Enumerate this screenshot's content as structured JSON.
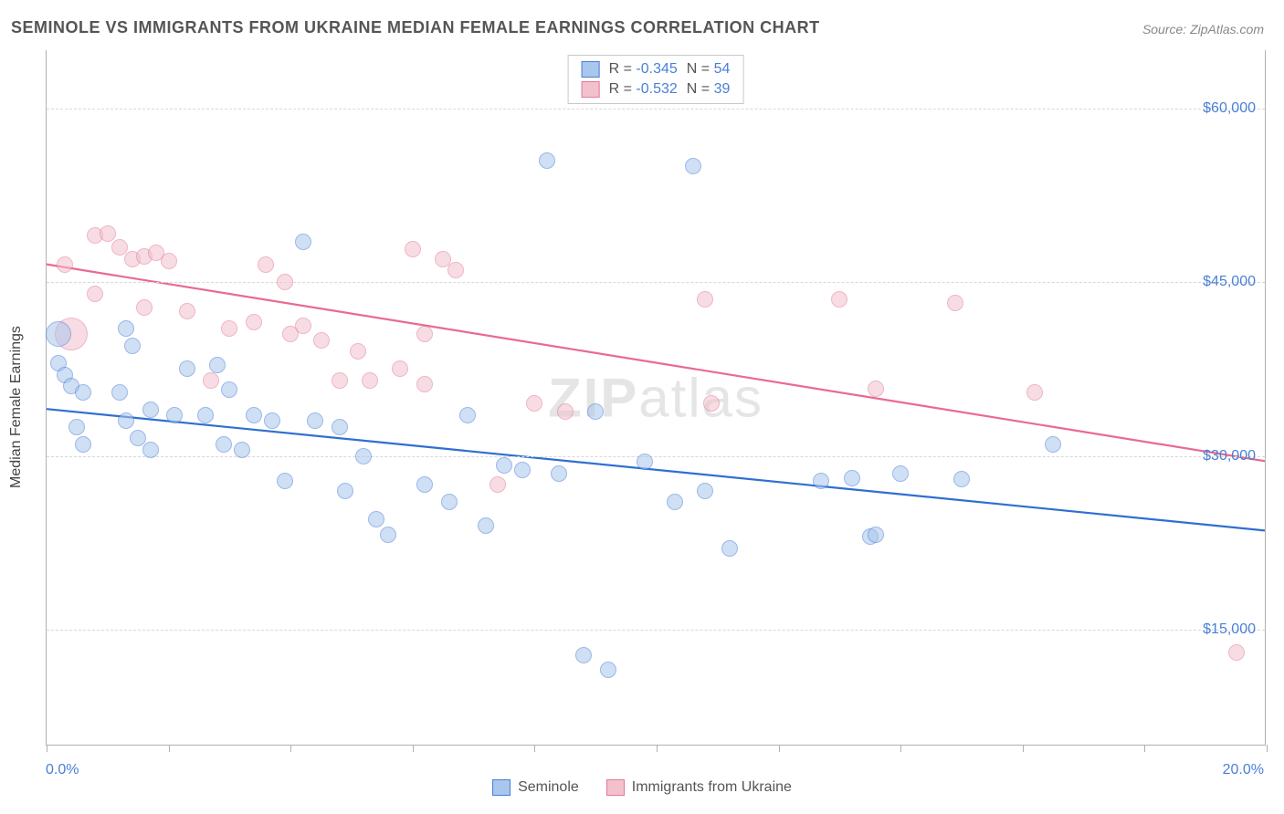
{
  "title": "SEMINOLE VS IMMIGRANTS FROM UKRAINE MEDIAN FEMALE EARNINGS CORRELATION CHART",
  "source": "Source: ZipAtlas.com",
  "ylabel": "Median Female Earnings",
  "watermark_bold": "ZIP",
  "watermark_rest": "atlas",
  "chart": {
    "type": "scatter",
    "xlim": [
      0,
      20
    ],
    "ylim": [
      5000,
      65000
    ],
    "x_start_label": "0.0%",
    "x_end_label": "20.0%",
    "x_tick_positions": [
      0,
      2,
      4,
      6,
      8,
      10,
      12,
      14,
      16,
      18,
      20
    ],
    "y_ticks": [
      {
        "v": 15000,
        "label": "$15,000"
      },
      {
        "v": 30000,
        "label": "$30,000"
      },
      {
        "v": 45000,
        "label": "$45,000"
      },
      {
        "v": 60000,
        "label": "$60,000"
      }
    ],
    "grid_color": "#d8d8d8",
    "axis_color": "#b0b0b0",
    "tick_label_color": "#4a7fd6",
    "background_color": "#ffffff",
    "marker_radius": 9,
    "marker_opacity": 0.55,
    "series": [
      {
        "name": "Seminole",
        "fill": "#a9c6ec",
        "stroke": "#4a7fd6",
        "trend_color": "#2f6fd0",
        "R": "-0.345",
        "N": "54",
        "trend": {
          "x1": 0,
          "y1": 34000,
          "x2": 20,
          "y2": 23500
        },
        "points": [
          {
            "x": 0.2,
            "y": 40500,
            "r": 14
          },
          {
            "x": 0.2,
            "y": 38000
          },
          {
            "x": 0.3,
            "y": 37000
          },
          {
            "x": 0.4,
            "y": 36000
          },
          {
            "x": 0.6,
            "y": 35500
          },
          {
            "x": 0.5,
            "y": 32500
          },
          {
            "x": 0.6,
            "y": 31000
          },
          {
            "x": 1.3,
            "y": 41000
          },
          {
            "x": 1.4,
            "y": 39500
          },
          {
            "x": 1.2,
            "y": 35500
          },
          {
            "x": 1.3,
            "y": 33000
          },
          {
            "x": 1.5,
            "y": 31500
          },
          {
            "x": 1.7,
            "y": 34000
          },
          {
            "x": 1.7,
            "y": 30500
          },
          {
            "x": 2.1,
            "y": 33500
          },
          {
            "x": 2.3,
            "y": 37500
          },
          {
            "x": 2.6,
            "y": 33500
          },
          {
            "x": 2.8,
            "y": 37800
          },
          {
            "x": 2.9,
            "y": 31000
          },
          {
            "x": 3.2,
            "y": 30500
          },
          {
            "x": 3.4,
            "y": 33500
          },
          {
            "x": 3.7,
            "y": 33000
          },
          {
            "x": 3.9,
            "y": 27800
          },
          {
            "x": 4.2,
            "y": 48500
          },
          {
            "x": 4.4,
            "y": 33000
          },
          {
            "x": 4.8,
            "y": 32500
          },
          {
            "x": 4.9,
            "y": 27000
          },
          {
            "x": 5.2,
            "y": 30000
          },
          {
            "x": 5.4,
            "y": 24500
          },
          {
            "x": 5.6,
            "y": 23200
          },
          {
            "x": 6.2,
            "y": 27500
          },
          {
            "x": 6.6,
            "y": 26000
          },
          {
            "x": 6.9,
            "y": 33500
          },
          {
            "x": 7.2,
            "y": 24000
          },
          {
            "x": 7.5,
            "y": 29200
          },
          {
            "x": 7.8,
            "y": 28800
          },
          {
            "x": 8.4,
            "y": 28500
          },
          {
            "x": 8.2,
            "y": 55500
          },
          {
            "x": 8.8,
            "y": 12800
          },
          {
            "x": 9.2,
            "y": 11500
          },
          {
            "x": 9.0,
            "y": 33800
          },
          {
            "x": 9.8,
            "y": 29500
          },
          {
            "x": 10.3,
            "y": 26000
          },
          {
            "x": 10.6,
            "y": 55000
          },
          {
            "x": 10.8,
            "y": 27000
          },
          {
            "x": 11.2,
            "y": 22000
          },
          {
            "x": 12.7,
            "y": 27800
          },
          {
            "x": 13.5,
            "y": 23000
          },
          {
            "x": 13.6,
            "y": 23200
          },
          {
            "x": 14.0,
            "y": 28500
          },
          {
            "x": 15.0,
            "y": 28000
          },
          {
            "x": 16.5,
            "y": 31000
          },
          {
            "x": 13.2,
            "y": 28100
          },
          {
            "x": 3.0,
            "y": 35700
          }
        ]
      },
      {
        "name": "Immigrants from Ukraine",
        "fill": "#f3c1cd",
        "stroke": "#e17a97",
        "trend_color": "#e86b8f",
        "R": "-0.532",
        "N": "39",
        "trend": {
          "x1": 0,
          "y1": 46500,
          "x2": 20,
          "y2": 29500
        },
        "points": [
          {
            "x": 0.3,
            "y": 46500
          },
          {
            "x": 0.4,
            "y": 40500,
            "r": 18
          },
          {
            "x": 0.8,
            "y": 49000
          },
          {
            "x": 0.8,
            "y": 44000
          },
          {
            "x": 1.2,
            "y": 48000
          },
          {
            "x": 1.4,
            "y": 47000
          },
          {
            "x": 1.6,
            "y": 47200
          },
          {
            "x": 1.6,
            "y": 42800
          },
          {
            "x": 1.8,
            "y": 47500
          },
          {
            "x": 2.0,
            "y": 46800
          },
          {
            "x": 2.3,
            "y": 42500
          },
          {
            "x": 2.7,
            "y": 36500
          },
          {
            "x": 3.0,
            "y": 41000
          },
          {
            "x": 3.4,
            "y": 41500
          },
          {
            "x": 3.6,
            "y": 46500
          },
          {
            "x": 4.0,
            "y": 40500
          },
          {
            "x": 4.2,
            "y": 41200
          },
          {
            "x": 4.5,
            "y": 40000
          },
          {
            "x": 4.8,
            "y": 36500
          },
          {
            "x": 5.1,
            "y": 39000
          },
          {
            "x": 5.3,
            "y": 36500
          },
          {
            "x": 5.8,
            "y": 37500
          },
          {
            "x": 6.0,
            "y": 47800
          },
          {
            "x": 6.2,
            "y": 36200
          },
          {
            "x": 6.2,
            "y": 40500
          },
          {
            "x": 6.5,
            "y": 47000
          },
          {
            "x": 6.7,
            "y": 46000
          },
          {
            "x": 7.4,
            "y": 27500
          },
          {
            "x": 8.0,
            "y": 34500
          },
          {
            "x": 8.5,
            "y": 33800
          },
          {
            "x": 10.8,
            "y": 43500
          },
          {
            "x": 10.9,
            "y": 34500
          },
          {
            "x": 13.0,
            "y": 43500
          },
          {
            "x": 13.6,
            "y": 35800
          },
          {
            "x": 14.9,
            "y": 43200
          },
          {
            "x": 16.2,
            "y": 35500
          },
          {
            "x": 19.5,
            "y": 13000
          },
          {
            "x": 3.9,
            "y": 45000
          },
          {
            "x": 1.0,
            "y": 49200
          }
        ]
      }
    ]
  },
  "legend": {
    "series1_label": "Seminole",
    "series2_label": "Immigrants from Ukraine"
  }
}
